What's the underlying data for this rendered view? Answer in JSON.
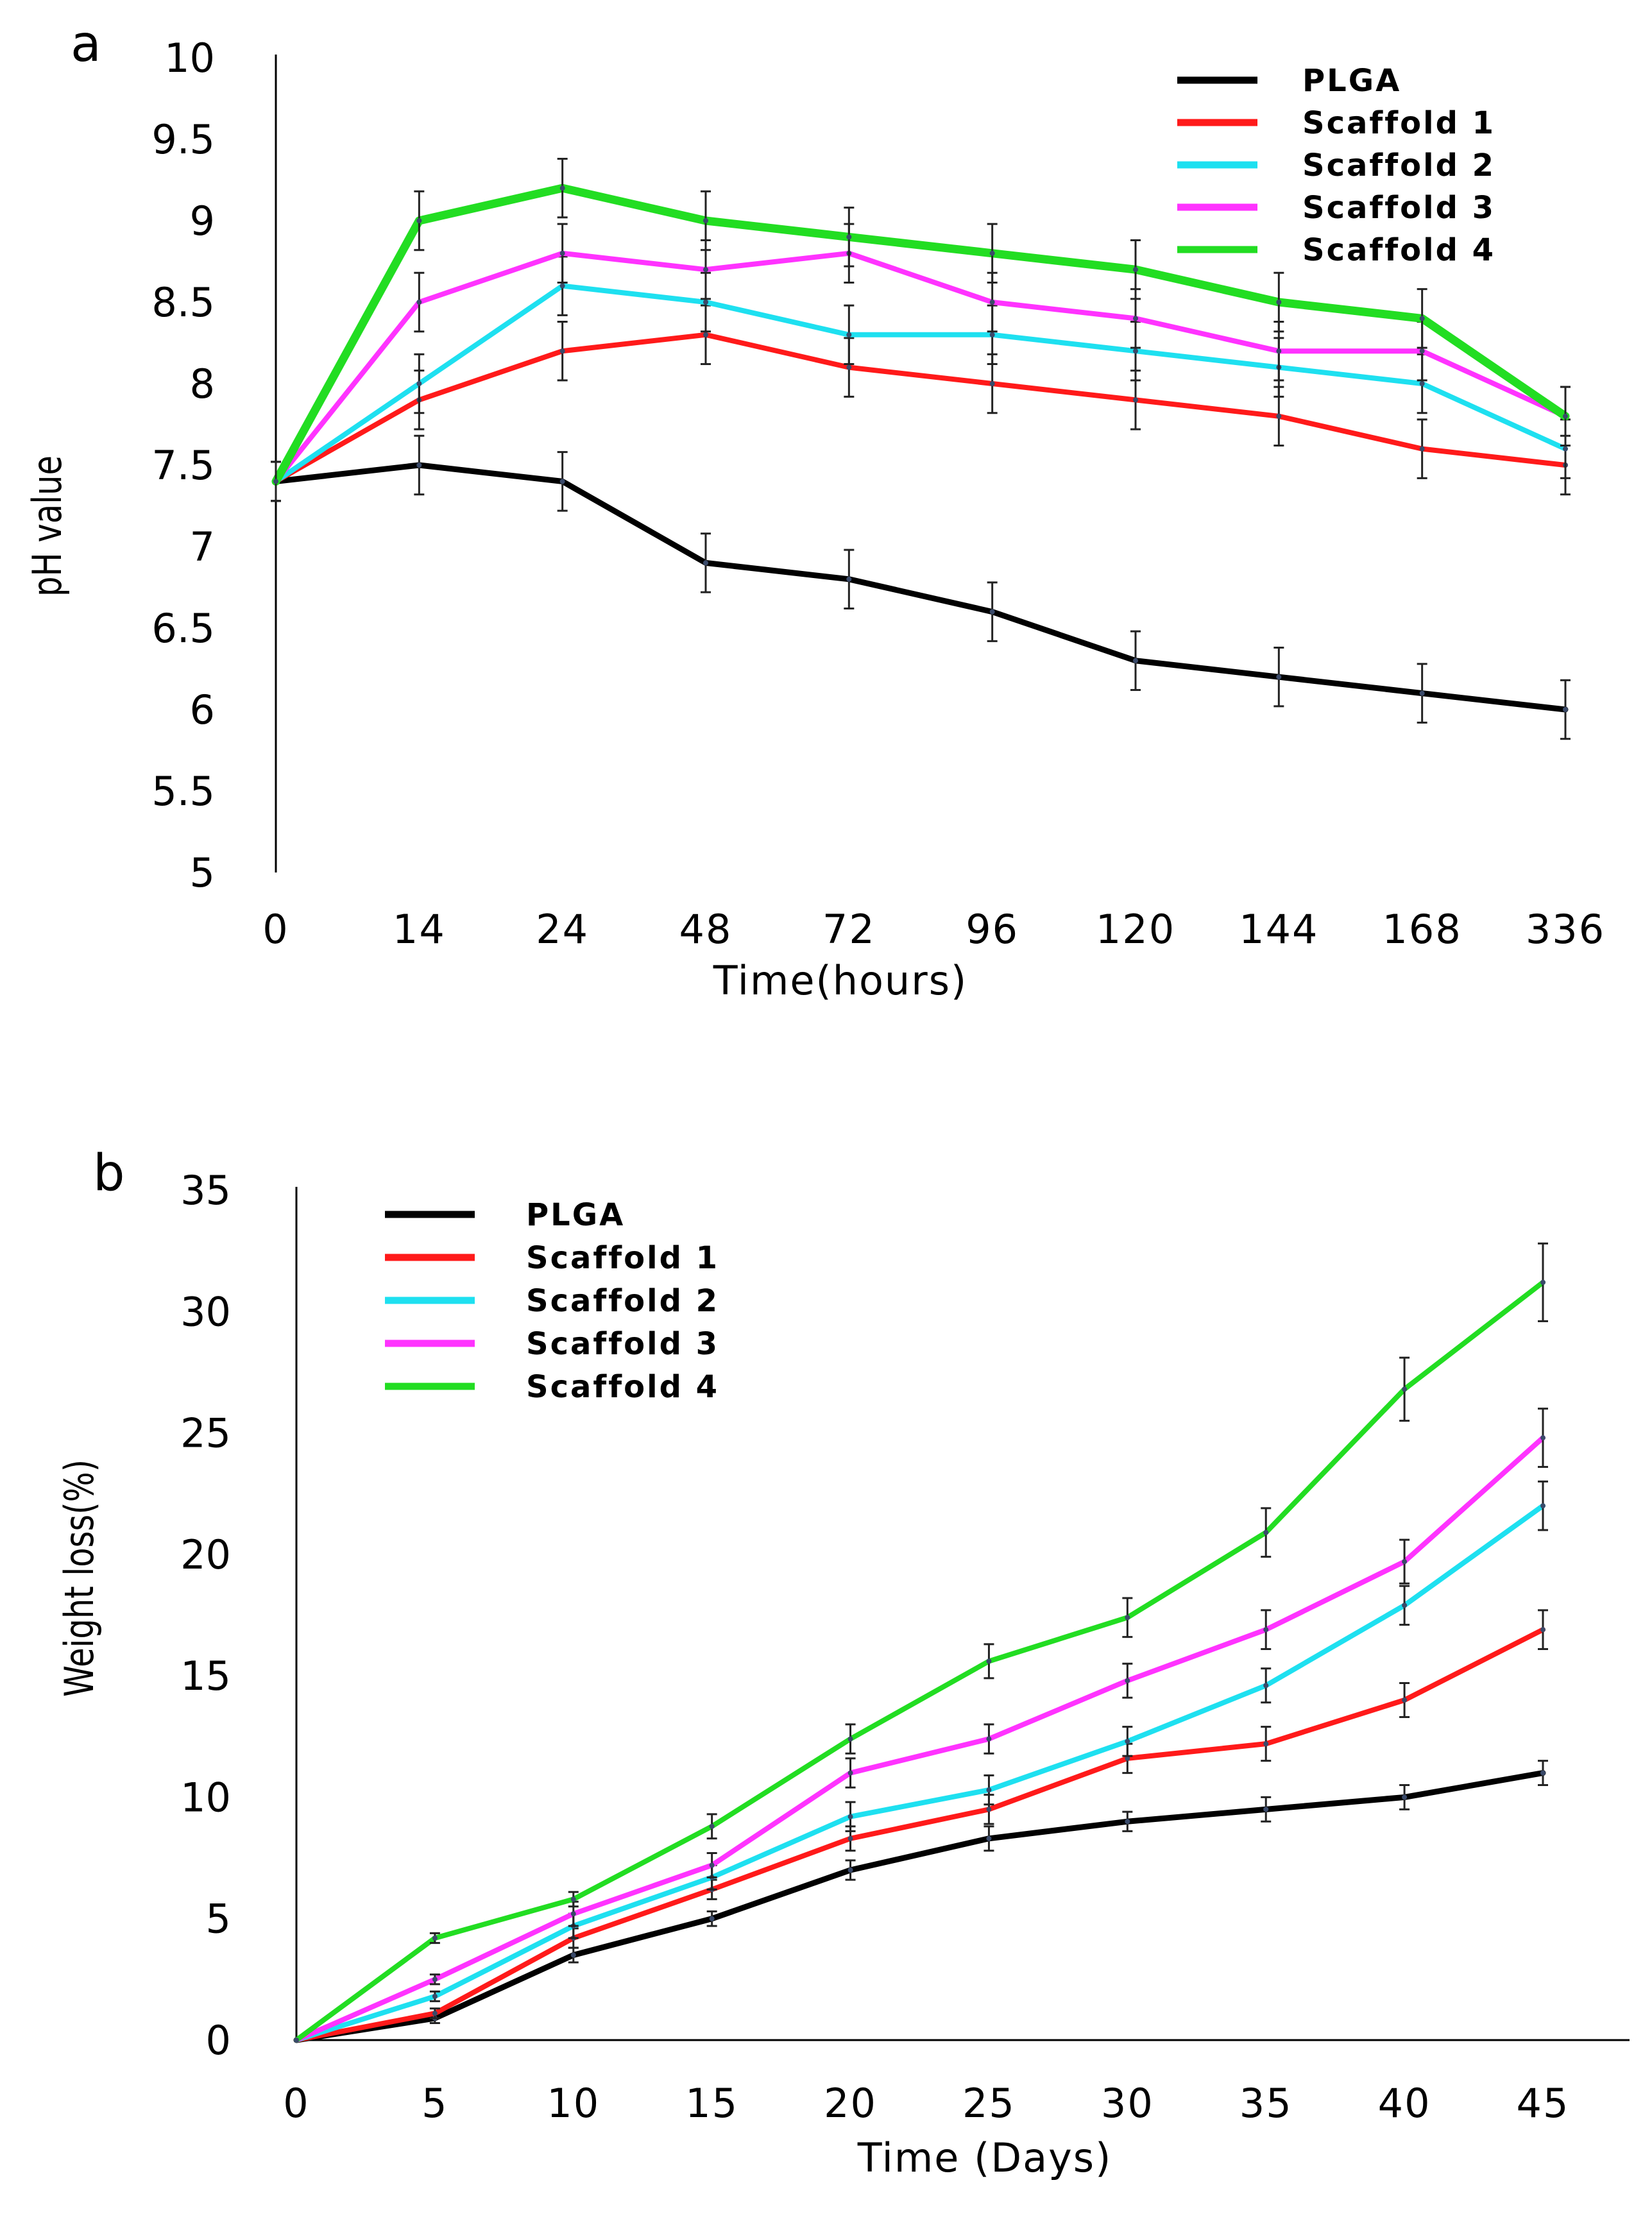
{
  "chart_data": [
    {
      "type": "line",
      "panel_label": "a",
      "xlabel": "Time(hours)",
      "ylabel": "pH value",
      "categories": [
        "0",
        "14",
        "24",
        "48",
        "72",
        "96",
        "120",
        "144",
        "168",
        "336"
      ],
      "ylim": [
        5,
        10
      ],
      "yticks": [
        "5",
        "5.5",
        "6",
        "6.5",
        "7",
        "7.5",
        "8",
        "8.5",
        "9",
        "9.5",
        "10"
      ],
      "error_bar": 0.18,
      "legend_position": "top-right",
      "series": [
        {
          "name": "PLGA",
          "color": "#000000",
          "values": [
            7.4,
            7.5,
            7.4,
            6.9,
            6.8,
            6.6,
            6.3,
            6.2,
            6.1,
            6.0
          ]
        },
        {
          "name": "Scaffold 1",
          "color": "#ff1a1a",
          "values": [
            7.4,
            7.9,
            8.2,
            8.3,
            8.1,
            8.0,
            7.9,
            7.8,
            7.6,
            7.5
          ]
        },
        {
          "name": "Scaffold 2",
          "color": "#1ee0f0",
          "values": [
            7.4,
            8.0,
            8.6,
            8.5,
            8.3,
            8.3,
            8.2,
            8.1,
            8.0,
            7.6
          ]
        },
        {
          "name": "Scaffold 3",
          "color": "#ff33ff",
          "values": [
            7.4,
            8.5,
            8.8,
            8.7,
            8.8,
            8.5,
            8.4,
            8.2,
            8.2,
            7.8
          ]
        },
        {
          "name": "Scaffold 4",
          "color": "#22dd22",
          "values": [
            7.4,
            9.0,
            9.2,
            9.0,
            8.9,
            8.8,
            8.7,
            8.5,
            8.4,
            7.8
          ]
        }
      ]
    },
    {
      "type": "line",
      "panel_label": "b",
      "xlabel": "Time (Days)",
      "ylabel": "Weight loss(%)",
      "categories": [
        "0",
        "5",
        "10",
        "15",
        "20",
        "25",
        "30",
        "35",
        "40",
        "45"
      ],
      "ylim": [
        0,
        35
      ],
      "yticks": [
        "0",
        "5",
        "10",
        "15",
        "20",
        "25",
        "30",
        "35"
      ],
      "legend_position": "top-left",
      "series": [
        {
          "name": "PLGA",
          "color": "#000000",
          "values": [
            0,
            0.9,
            3.5,
            5.0,
            7.0,
            8.3,
            9.0,
            9.5,
            10.0,
            11.0
          ],
          "errors": [
            0,
            0.2,
            0.3,
            0.3,
            0.4,
            0.5,
            0.4,
            0.5,
            0.5,
            0.5
          ]
        },
        {
          "name": "Scaffold 1",
          "color": "#ff1a1a",
          "values": [
            0,
            1.1,
            4.2,
            6.2,
            8.3,
            9.5,
            11.6,
            12.2,
            14.0,
            16.9
          ],
          "errors": [
            0,
            0.2,
            0.4,
            0.4,
            0.5,
            0.6,
            0.6,
            0.7,
            0.7,
            0.8
          ]
        },
        {
          "name": "Scaffold 2",
          "color": "#1ee0f0",
          "values": [
            0,
            1.8,
            4.7,
            6.7,
            9.2,
            10.3,
            12.3,
            14.6,
            17.9,
            22.0
          ],
          "errors": [
            0,
            0.2,
            0.5,
            0.5,
            0.6,
            0.6,
            0.6,
            0.7,
            0.8,
            1.0
          ]
        },
        {
          "name": "Scaffold 3",
          "color": "#ff33ff",
          "values": [
            0,
            2.5,
            5.2,
            7.2,
            11.0,
            12.4,
            14.8,
            16.9,
            19.7,
            24.8
          ],
          "errors": [
            0,
            0.2,
            0.5,
            0.5,
            0.6,
            0.6,
            0.7,
            0.8,
            0.9,
            1.2
          ]
        },
        {
          "name": "Scaffold 4",
          "color": "#22dd22",
          "values": [
            0,
            4.2,
            5.8,
            8.8,
            12.4,
            15.6,
            17.4,
            20.9,
            26.8,
            31.2
          ],
          "errors": [
            0,
            0.2,
            0.3,
            0.5,
            0.6,
            0.7,
            0.8,
            1.0,
            1.3,
            1.6
          ]
        }
      ]
    }
  ]
}
